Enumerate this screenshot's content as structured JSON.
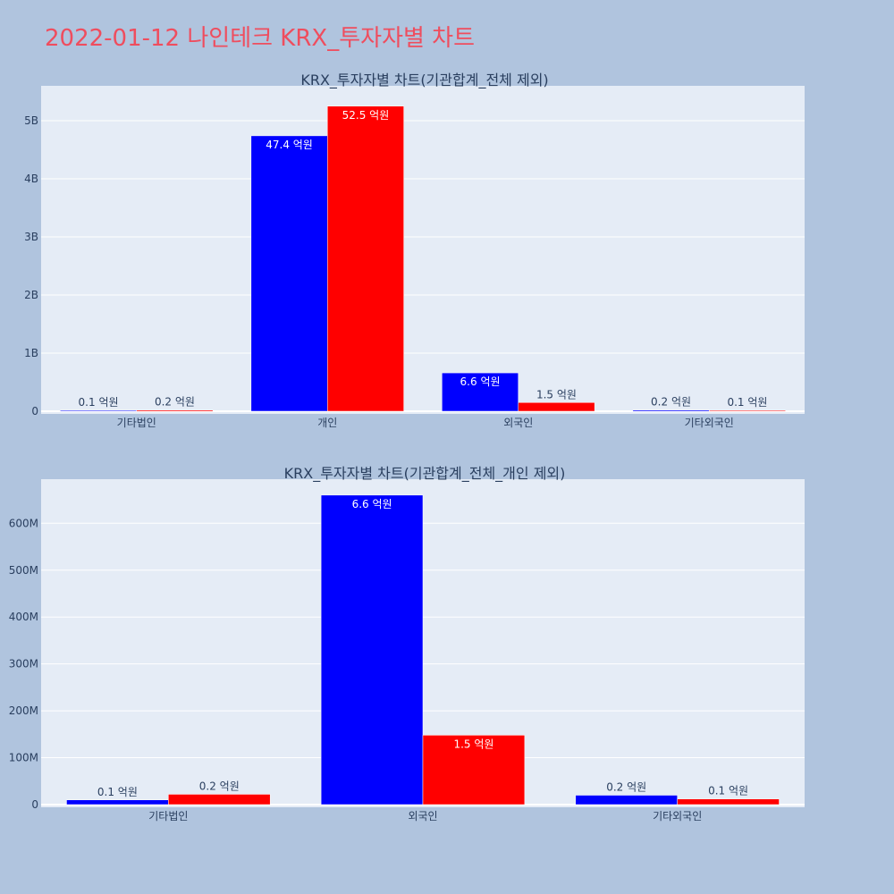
{
  "page_title": "2022-01-12 나인테크 KRX_투자자별 차트",
  "colors": {
    "background": "#b0c4de",
    "plot_bg": "#e5ecf6",
    "series_1": "#0000ff",
    "series_2": "#ff0000",
    "title": "#ef4d5e",
    "text": "#2a3f5f"
  },
  "chart_data": [
    {
      "type": "bar",
      "title": "KRX_투자자별 차트(기관합계_전체 제외)",
      "categories": [
        "기타법인",
        "개인",
        "외국인",
        "기타외국인"
      ],
      "series": [
        {
          "color": "#0000ff",
          "values": [
            10000000,
            4740000000,
            660000000,
            20000000
          ],
          "labels": [
            "0.1 억원",
            "47.4 억원",
            "6.6 억원",
            "0.2 억원"
          ]
        },
        {
          "color": "#ff0000",
          "values": [
            20000000,
            5250000000,
            150000000,
            10000000
          ],
          "labels": [
            "0.2 억원",
            "52.5 억원",
            "1.5 억원",
            "0.1 억원"
          ]
        }
      ],
      "ylim": [
        0,
        5600000000
      ],
      "y_ticks": [
        0,
        1000000000,
        2000000000,
        3000000000,
        4000000000,
        5000000000
      ],
      "y_tick_labels": [
        "0",
        "1B",
        "2B",
        "3B",
        "4B",
        "5B"
      ],
      "grid": true
    },
    {
      "type": "bar",
      "title": "KRX_투자자별 차트(기관합계_전체_개인 제외)",
      "categories": [
        "기타법인",
        "외국인",
        "기타외국인"
      ],
      "series": [
        {
          "color": "#0000ff",
          "values": [
            10000000,
            660000000,
            20000000
          ],
          "labels": [
            "0.1 억원",
            "6.6 억원",
            "0.2 억원"
          ]
        },
        {
          "color": "#ff0000",
          "values": [
            22000000,
            148000000,
            12000000
          ],
          "labels": [
            "0.2 억원",
            "1.5 억원",
            "0.1 억원"
          ]
        }
      ],
      "ylim": [
        0,
        694000000
      ],
      "y_ticks": [
        0,
        100000000,
        200000000,
        300000000,
        400000000,
        500000000,
        600000000
      ],
      "y_tick_labels": [
        "0",
        "100M",
        "200M",
        "300M",
        "400M",
        "500M",
        "600M"
      ],
      "grid": true
    }
  ]
}
